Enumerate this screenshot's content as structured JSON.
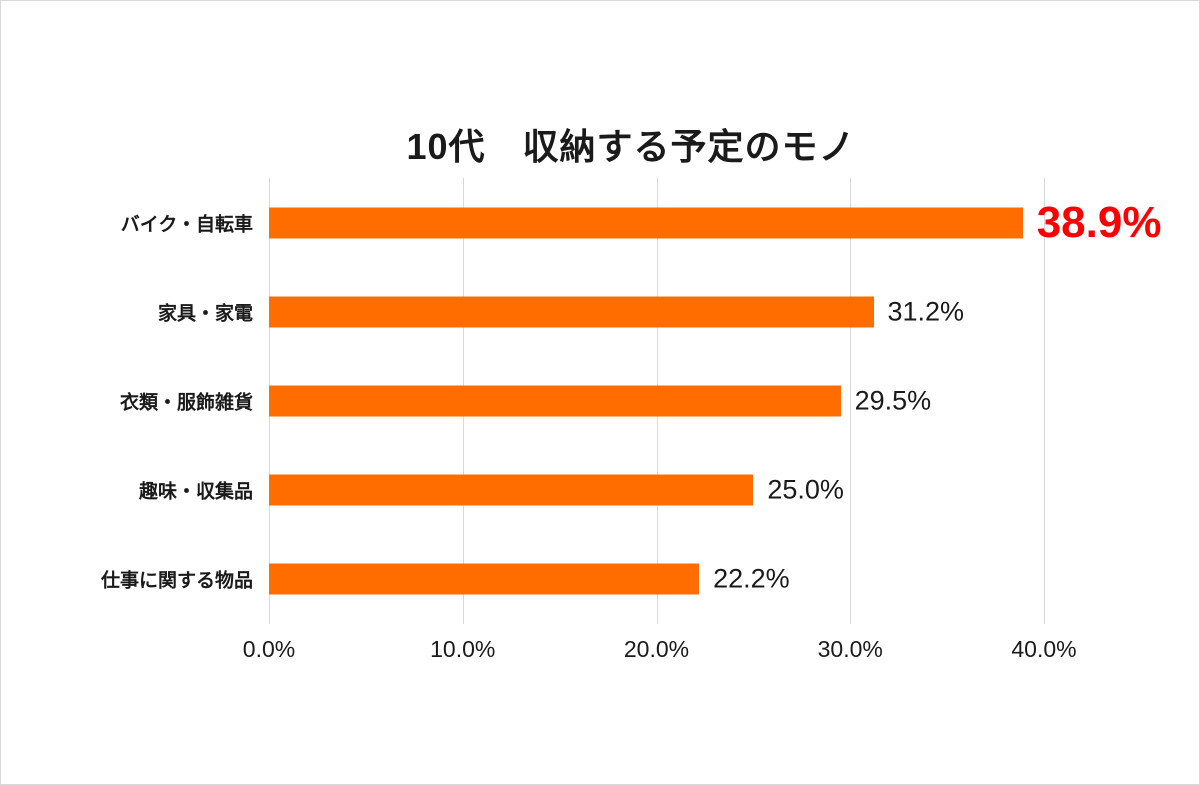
{
  "page": {
    "background_color": "#ffffff",
    "border_color": "#d9d9d9"
  },
  "chart_data": {
    "type": "bar",
    "orientation": "horizontal",
    "title": "10代　収納する予定のモノ",
    "categories": [
      "バイク・自転車",
      "家具・家電",
      "衣類・服飾雑貨",
      "趣味・収集品",
      "仕事に関する物品"
    ],
    "values": [
      38.9,
      31.2,
      29.5,
      25.0,
      22.2
    ],
    "value_labels": [
      "38.9%",
      "31.2%",
      "29.5%",
      "25.0%",
      "22.2%"
    ],
    "highlight_index": 0,
    "x_ticks": [
      {
        "value": 0,
        "label": "0.0%"
      },
      {
        "value": 10,
        "label": "10.0%"
      },
      {
        "value": 20,
        "label": "20.0%"
      },
      {
        "value": 30,
        "label": "30.0%"
      },
      {
        "value": 40,
        "label": "40.0%"
      }
    ],
    "xlim": [
      0,
      40
    ],
    "grid": "vertical",
    "legend": "none",
    "bar_color": "#ff6d00",
    "highlight_label_color": "#ff0000",
    "label_color": "#1a1a1a",
    "gridline_color": "#d9d9d9"
  }
}
